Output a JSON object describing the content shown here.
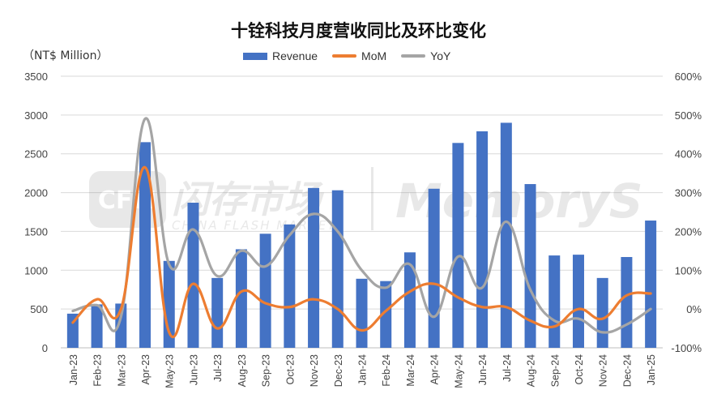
{
  "chart_data": {
    "type": "bar",
    "title": "十铨科技月度营收同比及环比变化",
    "ylabel_left": "（NT$ Million）",
    "categories": [
      "Jan-23",
      "Feb-23",
      "Mar-23",
      "Apr-23",
      "May-23",
      "Jun-23",
      "Jul-23",
      "Aug-23",
      "Sep-23",
      "Oct-23",
      "Nov-23",
      "Dec-23",
      "Jan-24",
      "Feb-24",
      "Mar-24",
      "Apr-24",
      "May-24",
      "Jun-24",
      "Jul-24",
      "Aug-24",
      "Sep-24",
      "Oct-24",
      "Nov-24",
      "Dec-24",
      "Jan-25"
    ],
    "series": [
      {
        "name": "Revenue",
        "type": "bar",
        "axis": "left",
        "color": "#4472C4",
        "values": [
          440,
          560,
          570,
          2650,
          1120,
          1870,
          900,
          1270,
          1470,
          1590,
          2060,
          2030,
          890,
          860,
          1230,
          2050,
          2640,
          2790,
          2900,
          2110,
          1190,
          1200,
          900,
          1170,
          1640
        ]
      },
      {
        "name": "MoM",
        "type": "line",
        "axis": "right",
        "color": "#ED7D31",
        "values": [
          -35,
          25,
          0,
          365,
          -60,
          65,
          -50,
          45,
          15,
          5,
          25,
          0,
          -55,
          -5,
          45,
          65,
          30,
          5,
          5,
          -30,
          -45,
          0,
          -25,
          35,
          40
        ]
      },
      {
        "name": "YoY",
        "type": "line",
        "axis": "right",
        "color": "#A5A5A5",
        "values": [
          -5,
          10,
          -20,
          490,
          115,
          205,
          85,
          150,
          110,
          190,
          245,
          200,
          100,
          55,
          115,
          -20,
          135,
          55,
          225,
          50,
          -30,
          -25,
          -60,
          -40,
          0
        ]
      }
    ],
    "yleft": {
      "min": 0,
      "max": 3500,
      "ticks": [
        0,
        500,
        1000,
        1500,
        2000,
        2500,
        3000,
        3500
      ]
    },
    "yright": {
      "min": -100,
      "max": 600,
      "ticks": [
        "-100%",
        "0%",
        "100%",
        "200%",
        "300%",
        "400%",
        "500%",
        "600%"
      ]
    },
    "legend_position": "top",
    "grid": true
  },
  "watermark": {
    "logo_text": "CFM",
    "brand_cn": "闪存市场",
    "brand_en": "CHINA FLASH MARKET",
    "brand_right": "MemoryS"
  }
}
